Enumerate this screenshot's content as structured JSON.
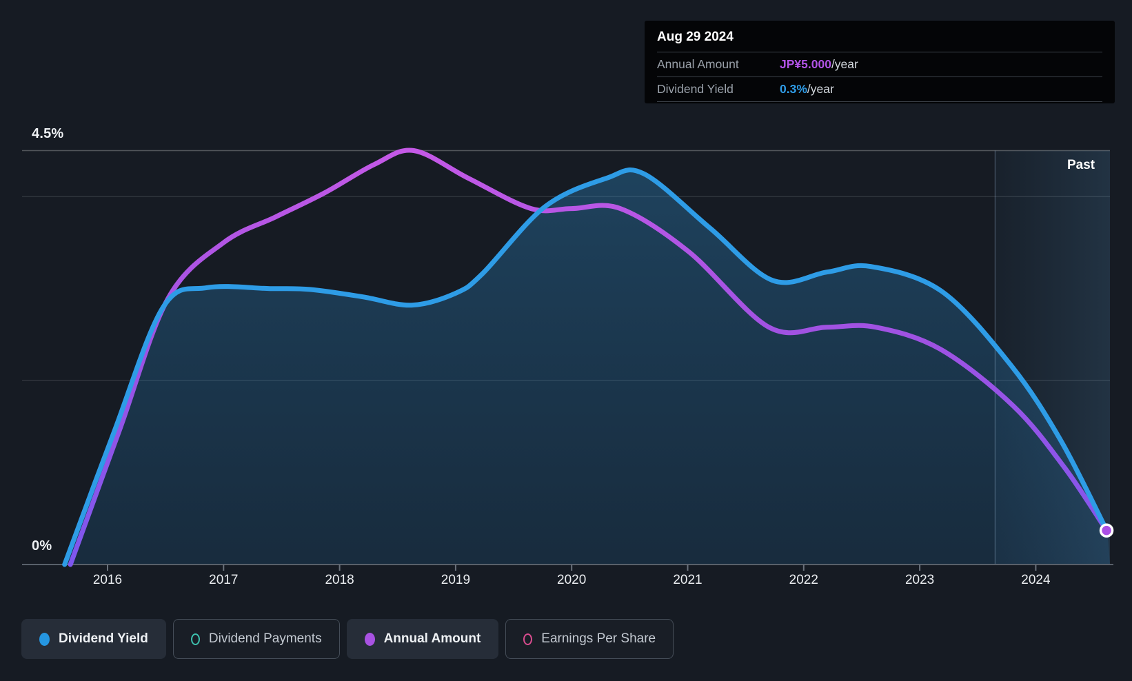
{
  "tooltip": {
    "date": "Aug 29 2024",
    "rows": [
      {
        "label": "Annual Amount",
        "value": "JP¥5.000",
        "suffix": "/year",
        "value_color": "#b153e6"
      },
      {
        "label": "Dividend Yield",
        "value": "0.3%",
        "suffix": "/year",
        "value_color": "#2f9ce6"
      }
    ]
  },
  "axes": {
    "y_top_label": "4.5%",
    "y_bottom_label": "0%",
    "x_labels": [
      "2016",
      "2017",
      "2018",
      "2019",
      "2020",
      "2021",
      "2022",
      "2023",
      "2024"
    ]
  },
  "past_label": "Past",
  "legend": [
    {
      "label": "Dividend Yield",
      "marker": "filled",
      "color": "#2596e1",
      "active": true
    },
    {
      "label": "Dividend Payments",
      "marker": "open",
      "color": "#3dbfad",
      "active": false
    },
    {
      "label": "Annual Amount",
      "marker": "filled",
      "color": "#a852e2",
      "active": true
    },
    {
      "label": "Earnings Per Share",
      "marker": "open",
      "color": "#d84c8e",
      "active": false
    }
  ],
  "chart_data": {
    "type": "line",
    "title": "Dividend history (yield % and annual amount) to Aug 29 2024",
    "x_range": [
      2015.6,
      2024.65
    ],
    "y_axis": {
      "unit": "%",
      "min": 0,
      "max": 4.5,
      "gridlines_pct": [
        4.5,
        4.0,
        2.0
      ],
      "grid": true
    },
    "past_marker_year": 2023.65,
    "legend_position": "bottom",
    "series": [
      {
        "name": "Dividend Yield",
        "color": "#2e9ce6",
        "fill": true,
        "points": [
          [
            2015.63,
            0.0
          ],
          [
            2016.05,
            1.42
          ],
          [
            2016.48,
            2.8
          ],
          [
            2016.86,
            3.01
          ],
          [
            2017.4,
            3.0
          ],
          [
            2017.75,
            2.99
          ],
          [
            2018.2,
            2.91
          ],
          [
            2018.62,
            2.82
          ],
          [
            2019.0,
            2.95
          ],
          [
            2019.23,
            3.16
          ],
          [
            2019.77,
            3.89
          ],
          [
            2020.3,
            4.2
          ],
          [
            2020.62,
            4.25
          ],
          [
            2021.19,
            3.66
          ],
          [
            2021.73,
            3.09
          ],
          [
            2022.2,
            3.18
          ],
          [
            2022.58,
            3.24
          ],
          [
            2023.19,
            2.97
          ],
          [
            2023.79,
            2.16
          ],
          [
            2024.22,
            1.34
          ],
          [
            2024.62,
            0.35
          ]
        ]
      },
      {
        "name": "Annual Amount",
        "color": "gradient-purple",
        "fill": false,
        "end_value_label": "JP¥5.000/year",
        "points": [
          [
            2015.68,
            0.0
          ],
          [
            2016.1,
            1.45
          ],
          [
            2016.52,
            2.89
          ],
          [
            2017.0,
            3.5
          ],
          [
            2017.45,
            3.78
          ],
          [
            2017.87,
            4.04
          ],
          [
            2018.3,
            4.35
          ],
          [
            2018.64,
            4.5
          ],
          [
            2019.11,
            4.2
          ],
          [
            2019.65,
            3.87
          ],
          [
            2020.0,
            3.87
          ],
          [
            2020.42,
            3.87
          ],
          [
            2021.01,
            3.4
          ],
          [
            2021.7,
            2.58
          ],
          [
            2022.2,
            2.58
          ],
          [
            2022.62,
            2.58
          ],
          [
            2023.18,
            2.34
          ],
          [
            2023.81,
            1.72
          ],
          [
            2024.25,
            1.05
          ],
          [
            2024.61,
            0.37
          ]
        ]
      }
    ],
    "end_dot": {
      "year": 2024.61,
      "value_pct": 0.37,
      "color": "#ab4fe6"
    }
  }
}
